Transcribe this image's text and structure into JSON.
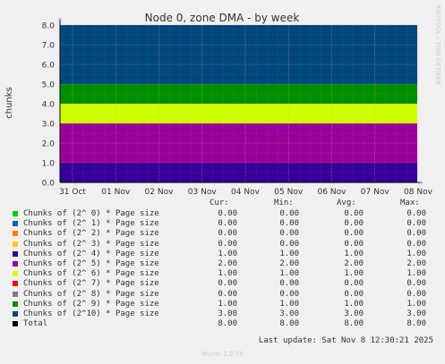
{
  "chart_data": {
    "type": "area",
    "title": "Node 0, zone DMA - by week",
    "ylabel": "chunks",
    "ylim": [
      0,
      8
    ],
    "yticks": [
      "0.0",
      "1.0",
      "2.0",
      "3.0",
      "4.0",
      "5.0",
      "6.0",
      "7.0",
      "8.0"
    ],
    "categories": [
      "31 Oct",
      "01 Nov",
      "02 Nov",
      "03 Nov",
      "04 Nov",
      "05 Nov",
      "06 Nov",
      "07 Nov",
      "08 Nov"
    ],
    "stacked": true,
    "grid": true,
    "series": [
      {
        "name": "Chunks of (2^ 0) * Page size",
        "color": "#00cc00",
        "cur": "0.00",
        "min": "0.00",
        "avg": "0.00",
        "max": "0.00",
        "value": 0
      },
      {
        "name": "Chunks of (2^ 1) * Page size",
        "color": "#0066b3",
        "cur": "0.00",
        "min": "0.00",
        "avg": "0.00",
        "max": "0.00",
        "value": 0
      },
      {
        "name": "Chunks of (2^ 2) * Page size",
        "color": "#ff8000",
        "cur": "0.00",
        "min": "0.00",
        "avg": "0.00",
        "max": "0.00",
        "value": 0
      },
      {
        "name": "Chunks of (2^ 3) * Page size",
        "color": "#ffcc00",
        "cur": "0.00",
        "min": "0.00",
        "avg": "0.00",
        "max": "0.00",
        "value": 0
      },
      {
        "name": "Chunks of (2^ 4) * Page size",
        "color": "#330099",
        "cur": "1.00",
        "min": "1.00",
        "avg": "1.00",
        "max": "1.00",
        "value": 1
      },
      {
        "name": "Chunks of (2^ 5) * Page size",
        "color": "#990099",
        "cur": "2.00",
        "min": "2.00",
        "avg": "2.00",
        "max": "2.00",
        "value": 2
      },
      {
        "name": "Chunks of (2^ 6) * Page size",
        "color": "#ccff00",
        "cur": "1.00",
        "min": "1.00",
        "avg": "1.00",
        "max": "1.00",
        "value": 1
      },
      {
        "name": "Chunks of (2^ 7) * Page size",
        "color": "#ff0000",
        "cur": "0.00",
        "min": "0.00",
        "avg": "0.00",
        "max": "0.00",
        "value": 0
      },
      {
        "name": "Chunks of (2^ 8) * Page size",
        "color": "#808080",
        "cur": "0.00",
        "min": "0.00",
        "avg": "0.00",
        "max": "0.00",
        "value": 0
      },
      {
        "name": "Chunks of (2^ 9) * Page size",
        "color": "#008f00",
        "cur": "1.00",
        "min": "1.00",
        "avg": "1.00",
        "max": "1.00",
        "value": 1
      },
      {
        "name": "Chunks of (2^10) * Page size",
        "color": "#00487d",
        "cur": "3.00",
        "min": "3.00",
        "avg": "3.00",
        "max": "3.00",
        "value": 3
      },
      {
        "name": "Total",
        "color": "#000000",
        "cur": "8.00",
        "min": "8.00",
        "avg": "8.00",
        "max": "8.00",
        "value": 8,
        "is_total": true
      }
    ]
  },
  "legend": {
    "headers": {
      "cur": "Cur:",
      "min": "Min:",
      "avg": "Avg:",
      "max": "Max:"
    }
  },
  "footer": {
    "last_update": "Last update: Sat Nov  8 12:30:21 2025",
    "version": "Munin 2.0.73"
  },
  "watermark": "RRDTOOL / TOBI OETIKER"
}
